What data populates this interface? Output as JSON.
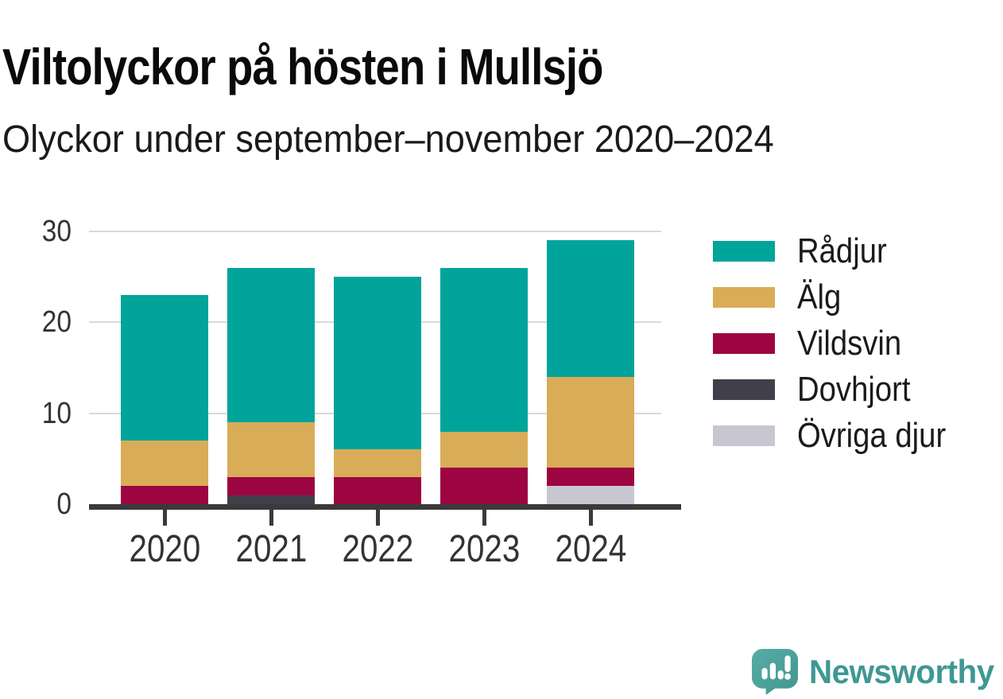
{
  "title": "Viltolyckor på hösten i Mullsjö",
  "subtitle": "Olyckor under september–november 2020–2024",
  "chart_data": {
    "type": "bar",
    "stacked": true,
    "categories": [
      "2020",
      "2021",
      "2022",
      "2023",
      "2024"
    ],
    "series": [
      {
        "name": "Rådjur",
        "color": "#00a49a",
        "values": [
          16,
          17,
          19,
          18,
          15
        ]
      },
      {
        "name": "Älg",
        "color": "#d9ac58",
        "values": [
          5,
          6,
          3,
          4,
          10
        ]
      },
      {
        "name": "Vildsvin",
        "color": "#9c0542",
        "values": [
          2,
          2,
          3,
          4,
          2
        ]
      },
      {
        "name": "Dovhjort",
        "color": "#423f4c",
        "values": [
          0,
          1,
          0,
          0,
          0
        ]
      },
      {
        "name": "Övriga djur",
        "color": "#c8c7d1",
        "values": [
          0,
          0,
          0,
          0,
          2
        ]
      }
    ],
    "totals": [
      23,
      26,
      25,
      26,
      29
    ],
    "stack_order_bottom_to_top": [
      "Övriga djur",
      "Dovhjort",
      "Vildsvin",
      "Älg",
      "Rådjur"
    ],
    "ylim": [
      0,
      30
    ],
    "yticks": [
      0,
      10,
      20,
      30
    ],
    "grid": "horizontal",
    "legend_position": "right"
  },
  "legend": {
    "items": [
      {
        "label": "Rådjur",
        "color": "#00a49a"
      },
      {
        "label": "Älg",
        "color": "#d9ac58"
      },
      {
        "label": "Vildsvin",
        "color": "#9c0542"
      },
      {
        "label": "Dovhjort",
        "color": "#423f4c"
      },
      {
        "label": "Övriga djur",
        "color": "#c8c7d1"
      }
    ]
  },
  "branding": {
    "logo_text": "Newsworthy",
    "logo_color": "#3f9793"
  },
  "colors": {
    "axis": "#3a3a3a",
    "gridline": "#d9d9d9",
    "tick_label": "#333333"
  }
}
